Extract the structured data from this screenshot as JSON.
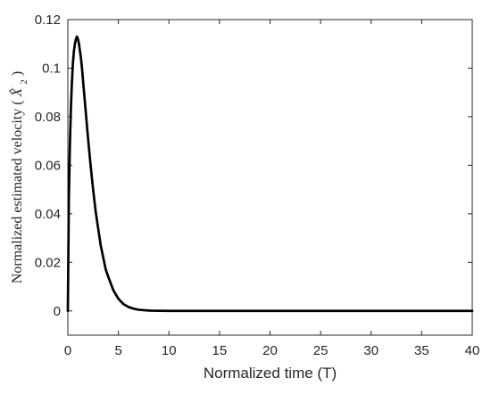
{
  "chart_data": {
    "type": "line",
    "title": "",
    "xlabel": "Normalized time (T)",
    "ylabel": "Normalized estimated velocity (X̂₂)",
    "ylabel_parts": {
      "prefix": "Normalized estimated velocity",
      "open": "(",
      "symbol": "X̂",
      "subscript": "2",
      "close": ")"
    },
    "xlim": [
      0,
      40
    ],
    "ylim": [
      -0.01,
      0.12
    ],
    "xticks": [
      0,
      5,
      10,
      15,
      20,
      25,
      30,
      35,
      40
    ],
    "yticks": [
      0,
      0.02,
      0.04,
      0.06,
      0.08,
      0.1,
      0.12
    ],
    "xtick_labels": [
      "0",
      "5",
      "10",
      "15",
      "20",
      "25",
      "30",
      "35",
      "40"
    ],
    "ytick_labels": [
      "0",
      "0.02",
      "0.04",
      "0.06",
      "0.08",
      "0.1",
      "0.12"
    ],
    "grid": false,
    "line_color": "#000000",
    "series": [
      {
        "x": [
          0,
          0.1,
          0.2,
          0.3,
          0.4,
          0.5,
          0.6,
          0.7,
          0.8,
          0.9,
          1.0,
          1.1,
          1.2,
          1.3,
          1.4,
          1.5,
          1.75,
          2.0,
          2.25,
          2.5,
          2.75,
          3.0,
          3.25,
          3.5,
          3.75,
          4.0,
          4.5,
          5.0,
          5.5,
          6.0,
          6.5,
          7.0,
          7.5,
          8.0,
          8.5,
          9.0,
          10.0,
          11.0,
          12.0,
          14.0,
          16.0,
          20.0,
          25.0,
          30.0,
          35.0,
          40.0
        ],
        "y": [
          0,
          0.046,
          0.068,
          0.083,
          0.094,
          0.102,
          0.107,
          0.11,
          0.112,
          0.113,
          0.112,
          0.11,
          0.107,
          0.104,
          0.1,
          0.095,
          0.083,
          0.071,
          0.06,
          0.05,
          0.041,
          0.034,
          0.027,
          0.022,
          0.017,
          0.014,
          0.0085,
          0.005,
          0.0028,
          0.0016,
          0.0009,
          0.0005,
          0.0003,
          0.00015,
          8e-05,
          4e-05,
          1e-05,
          0,
          0,
          0,
          0,
          0,
          0,
          0,
          0,
          0
        ]
      }
    ]
  }
}
